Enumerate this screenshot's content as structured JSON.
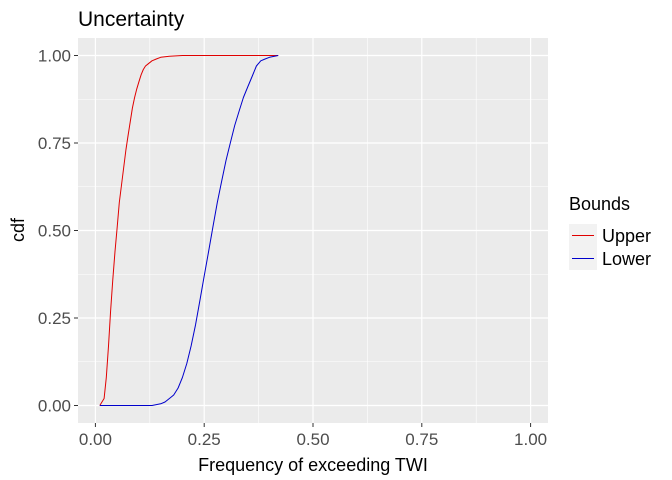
{
  "chart_data": {
    "type": "line",
    "title": "Uncertainty",
    "xlabel": "Frequency of exceeding TWI",
    "ylabel": "cdf",
    "xlim": [
      -0.04,
      1.04
    ],
    "ylim": [
      -0.05,
      1.05
    ],
    "x_ticks": [
      0,
      0.25,
      0.5,
      0.75,
      1.0
    ],
    "x_tick_labels": [
      "0.00",
      "0.25",
      "0.50",
      "0.75",
      "1.00"
    ],
    "y_ticks": [
      0,
      0.25,
      0.5,
      0.75,
      1.0
    ],
    "y_tick_labels": [
      "0.00",
      "0.25",
      "0.50",
      "0.75",
      "1.00"
    ],
    "grid": true,
    "legend": {
      "title": "Bounds",
      "placement": "right"
    },
    "series": [
      {
        "name": "Upper",
        "color": "#e00000",
        "x": [
          0.01,
          0.02,
          0.025,
          0.03,
          0.035,
          0.04,
          0.045,
          0.05,
          0.055,
          0.06,
          0.065,
          0.07,
          0.075,
          0.08,
          0.085,
          0.09,
          0.095,
          0.1,
          0.105,
          0.11,
          0.115,
          0.12,
          0.13,
          0.14,
          0.15,
          0.17,
          0.2,
          0.25,
          0.3,
          0.35,
          0.42
        ],
        "y": [
          0.0,
          0.02,
          0.08,
          0.17,
          0.27,
          0.36,
          0.44,
          0.51,
          0.58,
          0.63,
          0.68,
          0.73,
          0.77,
          0.81,
          0.85,
          0.88,
          0.905,
          0.925,
          0.945,
          0.96,
          0.97,
          0.975,
          0.985,
          0.99,
          0.995,
          0.998,
          1.0,
          1.0,
          1.0,
          1.0,
          1.0
        ]
      },
      {
        "name": "Lower",
        "color": "#0000cc",
        "x": [
          0.01,
          0.05,
          0.1,
          0.13,
          0.15,
          0.16,
          0.17,
          0.18,
          0.19,
          0.2,
          0.21,
          0.22,
          0.23,
          0.24,
          0.25,
          0.26,
          0.27,
          0.28,
          0.29,
          0.3,
          0.31,
          0.32,
          0.33,
          0.34,
          0.35,
          0.36,
          0.37,
          0.38,
          0.39,
          0.4,
          0.42
        ],
        "y": [
          0.0,
          0.0,
          0.0,
          0.0,
          0.005,
          0.01,
          0.02,
          0.03,
          0.05,
          0.08,
          0.12,
          0.17,
          0.23,
          0.3,
          0.37,
          0.44,
          0.51,
          0.58,
          0.64,
          0.7,
          0.75,
          0.8,
          0.84,
          0.88,
          0.91,
          0.94,
          0.97,
          0.985,
          0.99,
          0.995,
          1.0
        ]
      }
    ]
  }
}
